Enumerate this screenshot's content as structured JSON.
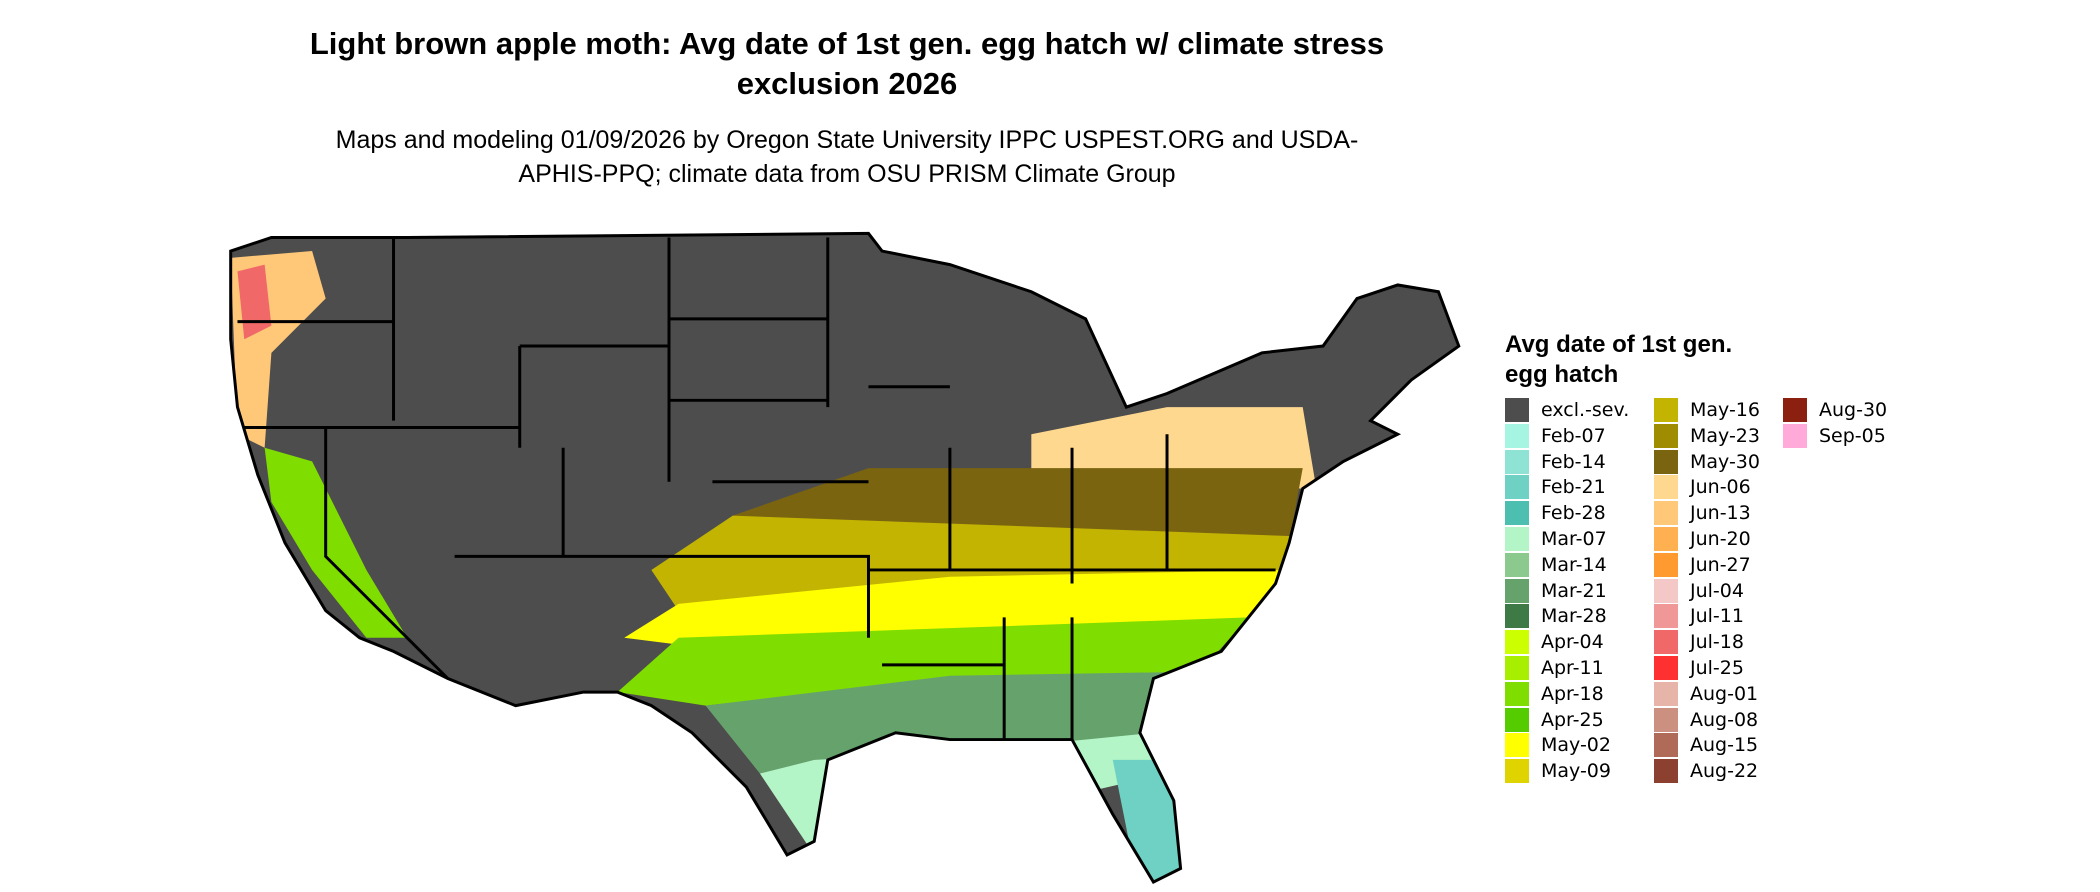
{
  "title": "Light brown apple moth: Avg date of 1st gen. egg hatch w/ climate stress exclusion 2026",
  "subtitle": "Maps and modeling 01/09/2026 by Oregon State University IPPC USPEST.ORG and USDA-APHIS-PPQ; climate data from OSU PRISM Climate Group",
  "legend": {
    "title": "Avg date of 1st gen. egg hatch",
    "items": [
      {
        "label": "excl.-sev.",
        "color": "#4d4d4d"
      },
      {
        "label": "Feb-07",
        "color": "#a6f5e2"
      },
      {
        "label": "Feb-14",
        "color": "#8ee3d4"
      },
      {
        "label": "Feb-21",
        "color": "#6fd1c4"
      },
      {
        "label": "Feb-28",
        "color": "#4dbfb0"
      },
      {
        "label": "Mar-07",
        "color": "#b3f5c6"
      },
      {
        "label": "Mar-14",
        "color": "#8cc98f"
      },
      {
        "label": "Mar-21",
        "color": "#66a36c"
      },
      {
        "label": "Mar-28",
        "color": "#3d7a45"
      },
      {
        "label": "Apr-04",
        "color": "#ccff00"
      },
      {
        "label": "Apr-11",
        "color": "#a8ee00"
      },
      {
        "label": "Apr-18",
        "color": "#80dd00"
      },
      {
        "label": "Apr-25",
        "color": "#55cc00"
      },
      {
        "label": "May-02",
        "color": "#ffff00"
      },
      {
        "label": "May-09",
        "color": "#e0d400"
      },
      {
        "label": "May-16",
        "color": "#c2b400"
      },
      {
        "label": "May-23",
        "color": "#a08c00"
      },
      {
        "label": "May-30",
        "color": "#7a6410"
      },
      {
        "label": "Jun-06",
        "color": "#ffd890"
      },
      {
        "label": "Jun-13",
        "color": "#ffc878"
      },
      {
        "label": "Jun-20",
        "color": "#ffb050"
      },
      {
        "label": "Jun-27",
        "color": "#ff9a30"
      },
      {
        "label": "Jul-04",
        "color": "#f5c8c8"
      },
      {
        "label": "Jul-11",
        "color": "#f09898"
      },
      {
        "label": "Jul-18",
        "color": "#f06868"
      },
      {
        "label": "Jul-25",
        "color": "#ff3030"
      },
      {
        "label": "Aug-01",
        "color": "#e6b4a8"
      },
      {
        "label": "Aug-08",
        "color": "#cc9080"
      },
      {
        "label": "Aug-15",
        "color": "#b06a58"
      },
      {
        "label": "Aug-22",
        "color": "#8c4030"
      },
      {
        "label": "Aug-30",
        "color": "#8b2010"
      },
      {
        "label": "Sep-05",
        "color": "#ffaad8"
      }
    ]
  }
}
